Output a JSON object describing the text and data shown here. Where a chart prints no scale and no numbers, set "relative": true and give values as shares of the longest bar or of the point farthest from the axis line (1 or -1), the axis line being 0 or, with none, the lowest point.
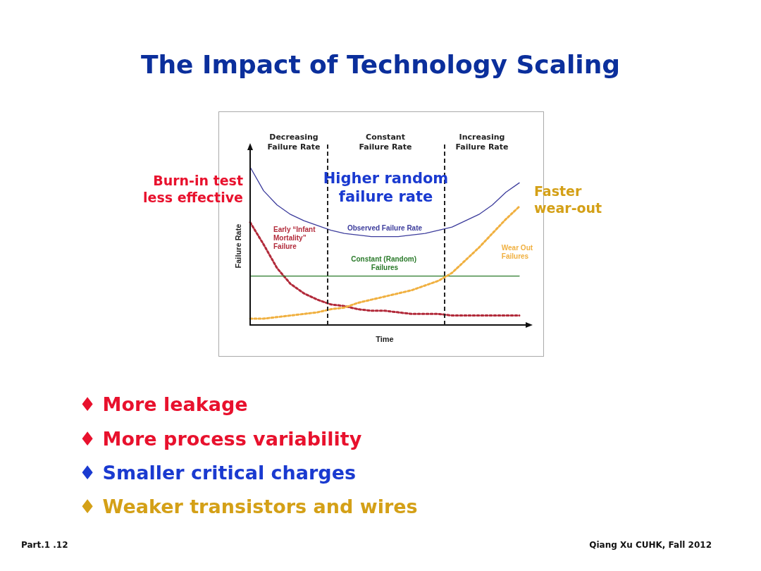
{
  "chart_data": {
    "type": "line",
    "title": "The Impact of Technology Scaling",
    "xlabel": "Time",
    "ylabel": "Failure Rate",
    "relative": true,
    "grid": false,
    "legend": false,
    "marker": "none",
    "categories": [
      null,
      null,
      null,
      null,
      null,
      null,
      null,
      null,
      null,
      null,
      null,
      null,
      null,
      null,
      null,
      null,
      null,
      null,
      null,
      null,
      null
    ],
    "series": [
      {
        "name": "Observed Failure Rate",
        "color": "#3c3c9c",
        "line_style": "solid",
        "values": [
          1.0,
          0.85,
          0.76,
          0.7,
          0.66,
          0.63,
          0.6,
          0.58,
          0.57,
          0.56,
          0.56,
          0.56,
          0.57,
          0.58,
          0.6,
          0.62,
          0.66,
          0.7,
          0.76,
          0.84,
          0.9
        ]
      },
      {
        "name": "Early “Infant Mortality” Failure",
        "color": "#b22a3a",
        "line_style": "dotted",
        "values": [
          0.65,
          0.51,
          0.36,
          0.26,
          0.2,
          0.16,
          0.13,
          0.12,
          0.1,
          0.09,
          0.09,
          0.08,
          0.07,
          0.07,
          0.07,
          0.06,
          0.06,
          0.06,
          0.06,
          0.06,
          0.06
        ]
      },
      {
        "name": "Constant (Random) Failures",
        "color": "#2a7a2a",
        "line_style": "solid",
        "values": [
          0.31,
          0.31,
          0.31,
          0.31,
          0.31,
          0.31,
          0.31,
          0.31,
          0.31,
          0.31,
          0.31,
          0.31,
          0.31,
          0.31,
          0.31,
          0.31,
          0.31,
          0.31,
          0.31,
          0.31,
          0.31
        ]
      },
      {
        "name": "Wear Out Failures",
        "color": "#f0b040",
        "line_style": "dotted",
        "values": [
          0.04,
          0.04,
          0.05,
          0.06,
          0.07,
          0.08,
          0.1,
          0.11,
          0.14,
          0.16,
          0.18,
          0.2,
          0.22,
          0.25,
          0.28,
          0.33,
          0.41,
          0.49,
          0.58,
          0.67,
          0.75
        ]
      }
    ],
    "annotations": [
      "Decreasing Failure Rate",
      "Constant Failure Rate",
      "Increasing Failure Rate",
      "Burn-in test less effective",
      "Higher random failure rate",
      "Faster wear-out",
      "♦ More leakage",
      "♦ More process variability",
      "♦ Smaller critical charges",
      "♦ Weaker transistors and wires",
      "Part.1 .12",
      "Qiang Xu CUHK, Fall 2012"
    ]
  }
}
